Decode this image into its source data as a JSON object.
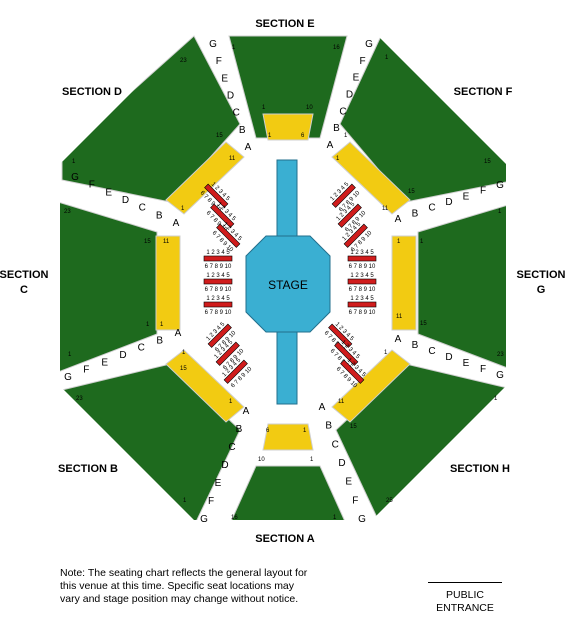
{
  "colors": {
    "section_fill": "#1e6a1e",
    "yellow_fill": "#f2cb12",
    "aisle": "#ffffff",
    "outline": "#cfcfcf",
    "stage": "#3aafd2",
    "stage_outline": "#226f8c",
    "chair": "#d01c1c",
    "background": "#ffffff"
  },
  "sections": {
    "A": "SECTION A",
    "B": "SECTION B",
    "C1": "SECTION",
    "C2": "C",
    "D": "SECTION D",
    "E": "SECTION E",
    "F": "SECTION F",
    "G1": "SECTION",
    "G2": "G",
    "H": "SECTION H"
  },
  "stage": "STAGE",
  "seat_rows": {
    "top": "1 2 3 4 5",
    "bottom": "6 7 8 9 10"
  },
  "row_letters": [
    "A",
    "B",
    "C",
    "D",
    "E",
    "F",
    "G"
  ],
  "seat_numbers": {
    "n1": "1",
    "n6": "6",
    "n10": "10",
    "n11": "11",
    "n15": "15",
    "n16": "16",
    "n23": "23",
    "n25": "25"
  },
  "note": {
    "line1": "Note: The seating chart reflects the general layout for",
    "line2": "this venue at this time.  Specific seat locations may",
    "line3": "vary and stage position may change without notice."
  },
  "entrance": {
    "line1": "PUBLIC",
    "line2": "ENTRANCE"
  }
}
